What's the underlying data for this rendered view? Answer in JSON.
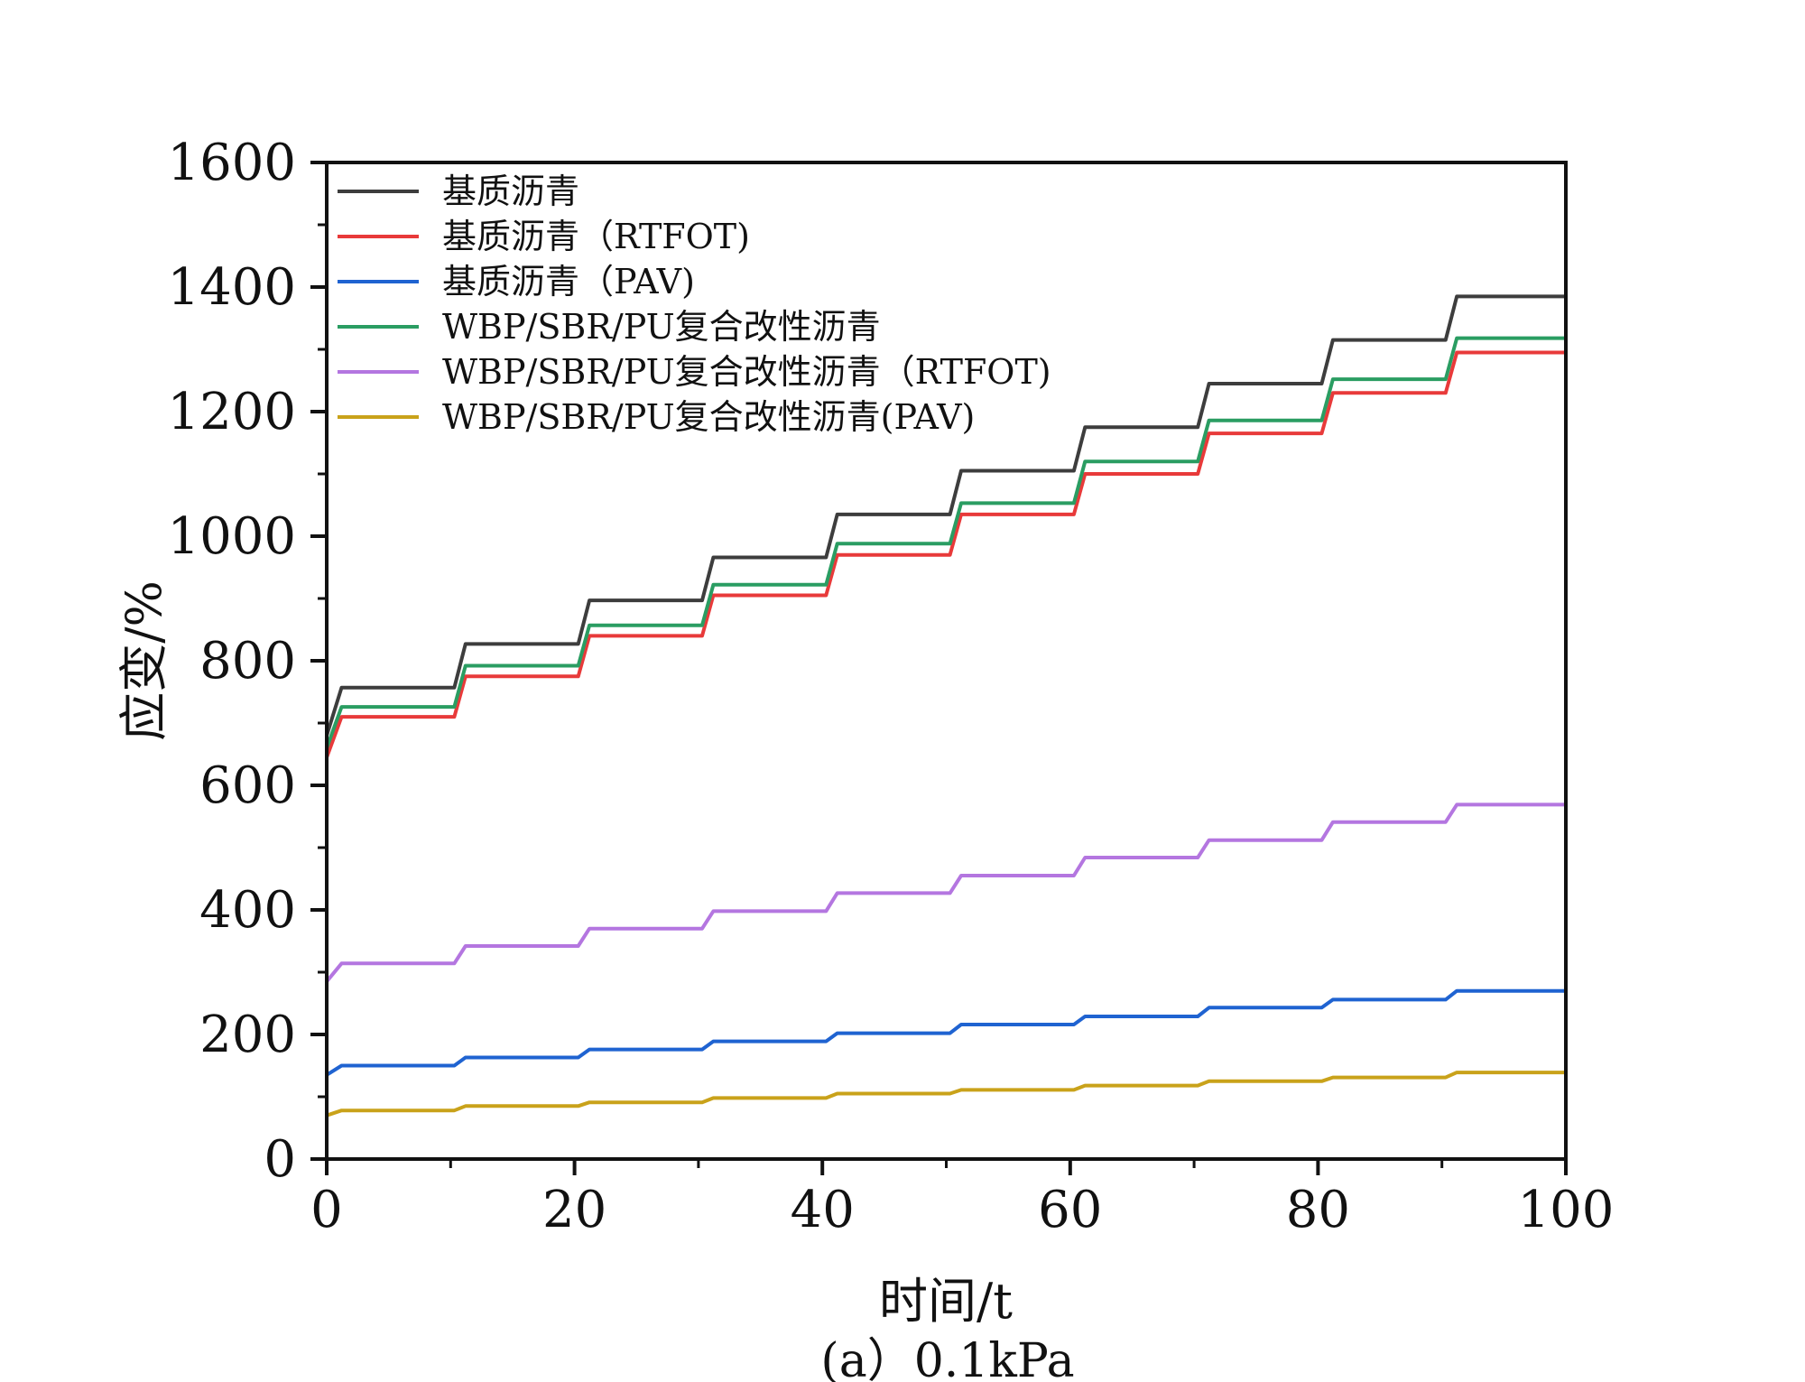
{
  "chart_data": {
    "type": "line",
    "title": "",
    "xlabel": "时间/t",
    "ylabel": "应变/%",
    "caption": "(a）0.1kPa",
    "xlim": [
      0,
      100
    ],
    "ylim": [
      0,
      1600
    ],
    "xticks": [
      0,
      20,
      40,
      60,
      80,
      100
    ],
    "yticks": [
      0,
      200,
      400,
      600,
      800,
      1000,
      1200,
      1400,
      1600
    ],
    "xtick_labels": [
      "0",
      "20",
      "40",
      "60",
      "80",
      "100"
    ],
    "ytick_labels": [
      "0",
      "200",
      "400",
      "600",
      "800",
      "1000",
      "1200",
      "1400",
      "1600"
    ],
    "grid": false,
    "legend_position": "top-left",
    "step_times": [
      0,
      10,
      20,
      30,
      40,
      50,
      60,
      70,
      80,
      90,
      100
    ],
    "series": [
      {
        "name": "基质沥青",
        "color": "#3d3d3d",
        "start": 680,
        "plateaus": [
          757,
          827,
          897,
          966,
          1035,
          1105,
          1175,
          1245,
          1315,
          1385
        ]
      },
      {
        "name": "基质沥青（RTFOT)",
        "color": "#e83a3a",
        "start": 645,
        "plateaus": [
          710,
          775,
          840,
          905,
          970,
          1035,
          1100,
          1165,
          1230,
          1295
        ]
      },
      {
        "name": "基质沥青（PAV)",
        "color": "#1f63d1",
        "start": 135,
        "plateaus": [
          150,
          163,
          176,
          189,
          202,
          216,
          229,
          243,
          256,
          270
        ]
      },
      {
        "name": "WBP/SBR/PU复合改性沥青",
        "color": "#2a9d62",
        "start": 660,
        "plateaus": [
          726,
          792,
          857,
          922,
          988,
          1053,
          1120,
          1186,
          1252,
          1318
        ]
      },
      {
        "name": "WBP/SBR/PU复合改性沥青（RTFOT)",
        "color": "#b476e0",
        "start": 285,
        "plateaus": [
          314,
          342,
          370,
          398,
          427,
          455,
          484,
          512,
          541,
          569
        ]
      },
      {
        "name": "WBP/SBR/PU复合改性沥青(PAV)",
        "color": "#c9a21a",
        "start": 70,
        "plateaus": [
          78,
          85,
          91,
          98,
          105,
          111,
          118,
          125,
          131,
          139
        ]
      }
    ]
  }
}
